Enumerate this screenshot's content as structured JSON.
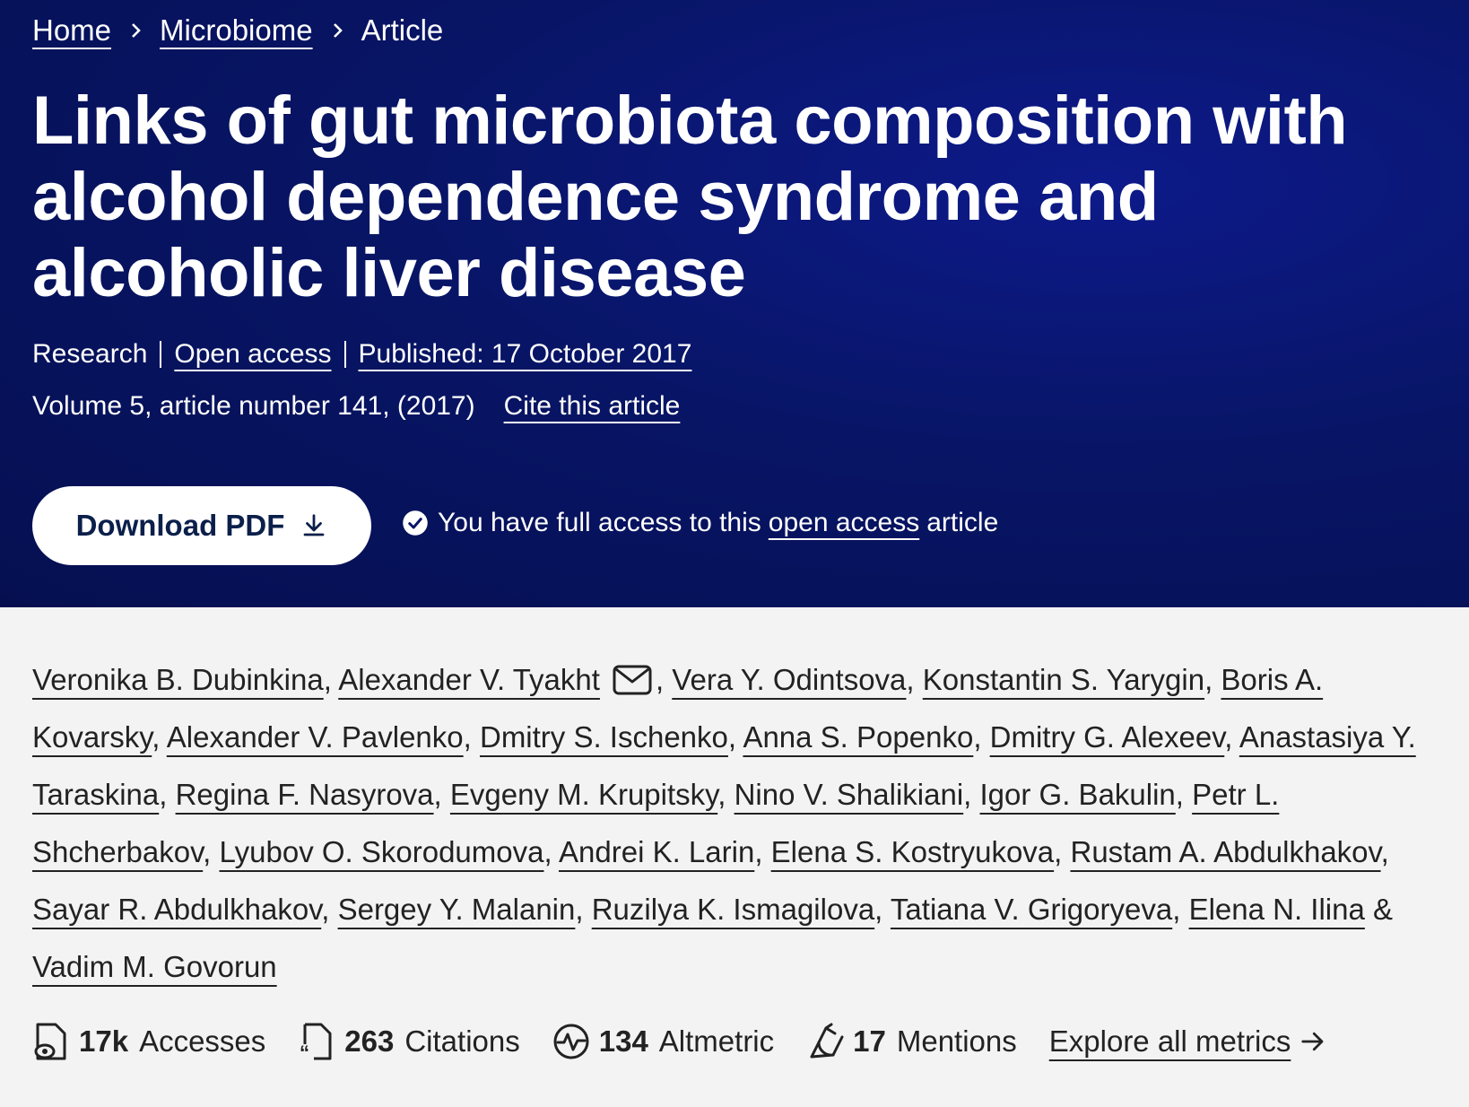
{
  "breadcrumb": {
    "items": [
      "Home",
      "Microbiome"
    ],
    "current": "Article"
  },
  "article": {
    "title": "Links of gut microbiota composition with alcohol dependence syndrome and alcoholic liver disease",
    "type": "Research",
    "access_label": "Open access",
    "published": "Published: 17 October 2017",
    "volume": "Volume 5, article number 141, (2017)",
    "cite_label": "Cite this article"
  },
  "actions": {
    "download_label": "Download PDF",
    "access_prefix": "You have full access to this",
    "access_link": "open access",
    "access_suffix": "article"
  },
  "authors": [
    "Veronika B. Dubinkina",
    "Alexander V. Tyakht",
    "Vera Y. Odintsova",
    "Konstantin S. Yarygin",
    "Boris A. Kovarsky",
    "Alexander V. Pavlenko",
    "Dmitry S. Ischenko",
    "Anna S. Popenko",
    "Dmitry G. Alexeev",
    "Anastasiya Y. Taraskina",
    "Regina F. Nasyrova",
    "Evgeny M. Krupitsky",
    "Nino V. Shalikiani",
    "Igor G. Bakulin",
    "Petr L. Shcherbakov",
    "Lyubov O. Skorodumova",
    "Andrei K. Larin",
    "Elena S. Kostryukova",
    "Rustam A. Abdulkhakov",
    "Sayar R. Abdulkhakov",
    "Sergey Y. Malanin",
    "Ruzilya K. Ismagilova",
    "Tatiana V. Grigoryeva",
    "Elena N. Ilina",
    "Vadim M. Govorun"
  ],
  "metrics": {
    "accesses_value": "17k",
    "accesses_label": "Accesses",
    "citations_value": "263",
    "citations_label": "Citations",
    "altmetric_value": "134",
    "altmetric_label": "Altmetric",
    "mentions_value": "17",
    "mentions_label": "Mentions",
    "explore_label": "Explore all metrics"
  },
  "colors": {
    "hero_background": "#081566",
    "button_text": "#0b1f4a",
    "body_background": "#f3f3f3"
  },
  "icons": [
    "chevron-right-icon",
    "download-icon",
    "check-circle-icon",
    "mail-icon",
    "accesses-icon",
    "citations-icon",
    "altmetric-icon",
    "mentions-icon",
    "arrow-right-icon"
  ]
}
